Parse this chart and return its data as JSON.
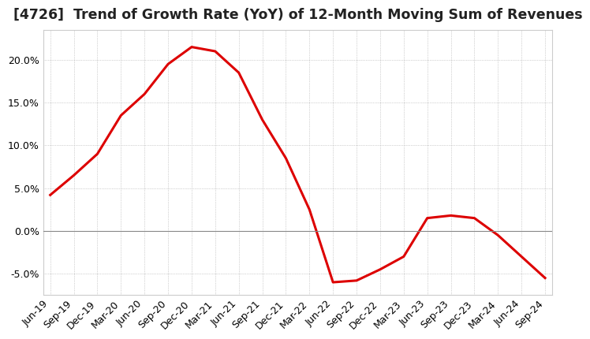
{
  "title": "[4726]  Trend of Growth Rate (YoY) of 12-Month Moving Sum of Revenues",
  "ylim": [
    -7.5,
    23.5
  ],
  "yticks": [
    -5.0,
    0.0,
    5.0,
    10.0,
    15.0,
    20.0
  ],
  "line_color": "#dd0000",
  "background_color": "#ffffff",
  "plot_bg_color": "#ffffff",
  "title_fontsize": 12.5,
  "tick_fontsize": 9,
  "dates": [
    "Jun-19",
    "Sep-19",
    "Dec-19",
    "Mar-20",
    "Jun-20",
    "Sep-20",
    "Dec-20",
    "Mar-21",
    "Jun-21",
    "Sep-21",
    "Dec-21",
    "Mar-22",
    "Jun-22",
    "Sep-22",
    "Dec-22",
    "Mar-23",
    "Jun-23",
    "Sep-23",
    "Dec-23",
    "Mar-24",
    "Jun-24",
    "Sep-24"
  ],
  "values": [
    4.2,
    6.5,
    9.0,
    13.5,
    16.0,
    19.5,
    21.5,
    21.0,
    18.5,
    13.0,
    8.5,
    2.5,
    -6.0,
    -5.8,
    -4.5,
    -3.0,
    1.5,
    1.8,
    1.5,
    -0.5,
    -3.0,
    -5.5
  ]
}
